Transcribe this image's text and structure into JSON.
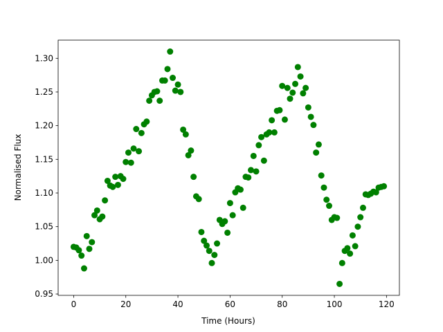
{
  "chart_data": {
    "type": "scatter",
    "xlabel": "Time (Hours)",
    "ylabel": "Normalised Flux",
    "color": "#008000",
    "x": [
      0,
      1,
      2,
      3,
      4,
      5,
      6,
      7,
      8,
      9,
      10,
      11,
      12,
      13,
      14,
      15,
      16,
      17,
      18,
      19,
      20,
      21,
      22,
      23,
      24,
      25,
      26,
      27,
      28,
      29,
      30,
      31,
      32,
      33,
      34,
      35,
      36,
      37,
      38,
      39,
      40,
      41,
      42,
      43,
      44,
      45,
      46,
      47,
      48,
      49,
      50,
      51,
      52,
      53,
      54,
      55,
      56,
      57,
      58,
      59,
      60,
      61,
      62,
      63,
      64,
      65,
      66,
      67,
      68,
      69,
      70,
      71,
      72,
      73,
      74,
      75,
      76,
      77,
      78,
      79,
      80,
      81,
      82,
      83,
      84,
      85,
      86,
      87,
      88,
      89,
      90,
      91,
      92,
      93,
      94,
      95,
      96,
      97,
      98,
      99,
      100,
      101,
      102,
      103,
      104,
      105,
      106,
      107,
      108,
      109,
      110,
      111,
      112,
      113,
      114,
      115,
      116,
      117,
      118,
      119
    ],
    "values": [
      1.02,
      1.019,
      1.015,
      1.007,
      0.988,
      1.036,
      1.017,
      1.027,
      1.067,
      1.074,
      1.061,
      1.065,
      1.089,
      1.118,
      1.111,
      1.109,
      1.124,
      1.112,
      1.125,
      1.121,
      1.146,
      1.16,
      1.145,
      1.166,
      1.195,
      1.162,
      1.189,
      1.202,
      1.206,
      1.237,
      1.245,
      1.25,
      1.251,
      1.237,
      1.267,
      1.267,
      1.284,
      1.31,
      1.271,
      1.252,
      1.261,
      1.25,
      1.194,
      1.187,
      1.156,
      1.163,
      1.124,
      1.095,
      1.091,
      1.042,
      1.029,
      1.022,
      1.014,
      0.996,
      1.008,
      1.025,
      1.06,
      1.054,
      1.058,
      1.041,
      1.085,
      1.067,
      1.101,
      1.107,
      1.105,
      1.078,
      1.124,
      1.123,
      1.134,
      1.155,
      1.132,
      1.171,
      1.183,
      1.148,
      1.187,
      1.19,
      1.208,
      1.19,
      1.222,
      1.223,
      1.259,
      1.209,
      1.256,
      1.24,
      1.249,
      1.262,
      1.287,
      1.273,
      1.248,
      1.256,
      1.227,
      1.213,
      1.201,
      1.16,
      1.172,
      1.126,
      1.108,
      1.09,
      1.081,
      1.06,
      1.064,
      1.063,
      0.965,
      0.996,
      1.014,
      1.018,
      1.01,
      1.037,
      1.021,
      1.05,
      1.064,
      1.078,
      1.098,
      1.097,
      1.099,
      1.102,
      1.101,
      1.108,
      1.109,
      1.11
    ],
    "xlim": [
      -5.95,
      124.95
    ],
    "ylim": [
      0.948,
      1.327
    ],
    "xticks": [
      0,
      20,
      40,
      60,
      80,
      100,
      120
    ],
    "yticks": [
      0.95,
      {
        "value": 1,
        "label": "1.00"
      },
      1.05,
      {
        "value": 1.1,
        "label": "1.10"
      },
      1.15,
      {
        "value": 1.2,
        "label": "1.20"
      },
      1.25,
      {
        "value": 1.3,
        "label": "1.30"
      }
    ],
    "grid": false
  }
}
